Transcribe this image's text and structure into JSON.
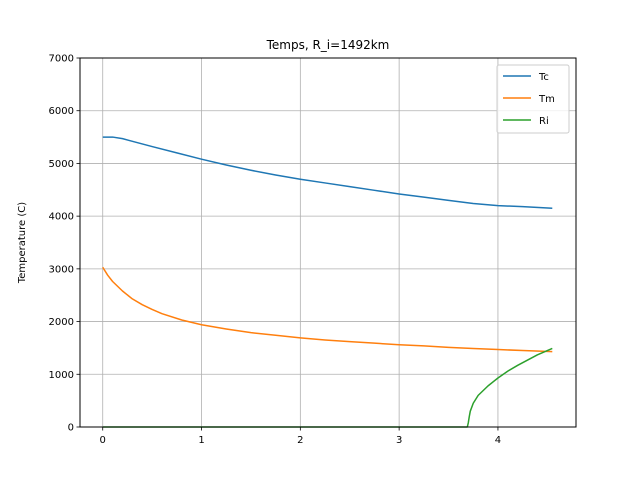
{
  "chart_data": {
    "type": "line",
    "title": "Temps, R_i=1492km",
    "xlabel": "",
    "ylabel": "Temperature (C)",
    "xlim": [
      -0.23,
      4.79
    ],
    "ylim": [
      0,
      7000
    ],
    "xticks": [
      0,
      1,
      2,
      3,
      4
    ],
    "yticks": [
      0,
      1000,
      2000,
      3000,
      4000,
      5000,
      6000,
      7000
    ],
    "grid": true,
    "legend": "top-right",
    "series": [
      {
        "name": "Tc",
        "color": "#1f77b4",
        "x": [
          0,
          0.1,
          0.2,
          0.3,
          0.5,
          0.75,
          1.0,
          1.25,
          1.5,
          1.75,
          2.0,
          2.25,
          2.5,
          2.75,
          3.0,
          3.25,
          3.5,
          3.75,
          4.0,
          4.25,
          4.55
        ],
        "y": [
          5500,
          5500,
          5470,
          5420,
          5320,
          5200,
          5080,
          4970,
          4870,
          4780,
          4700,
          4630,
          4560,
          4490,
          4420,
          4360,
          4300,
          4240,
          4200,
          4180,
          4150
        ]
      },
      {
        "name": "Tm",
        "color": "#ff7f0e",
        "x": [
          0,
          0.05,
          0.1,
          0.2,
          0.3,
          0.4,
          0.5,
          0.6,
          0.8,
          1.0,
          1.25,
          1.5,
          1.75,
          2.0,
          2.25,
          2.5,
          2.75,
          3.0,
          3.25,
          3.5,
          3.75,
          4.0,
          4.25,
          4.55
        ],
        "y": [
          3030,
          2880,
          2760,
          2580,
          2430,
          2320,
          2230,
          2150,
          2030,
          1940,
          1860,
          1790,
          1740,
          1690,
          1650,
          1620,
          1590,
          1560,
          1540,
          1510,
          1490,
          1470,
          1450,
          1430
        ]
      },
      {
        "name": "Ri",
        "color": "#2ca02c",
        "x": [
          0,
          1,
          2,
          3,
          3.69,
          3.7,
          3.71,
          3.72,
          3.75,
          3.8,
          3.9,
          4.0,
          4.1,
          4.2,
          4.3,
          4.4,
          4.55
        ],
        "y": [
          0,
          0,
          0,
          0,
          0,
          80,
          200,
          300,
          450,
          600,
          780,
          930,
          1060,
          1170,
          1270,
          1370,
          1490
        ]
      }
    ]
  }
}
